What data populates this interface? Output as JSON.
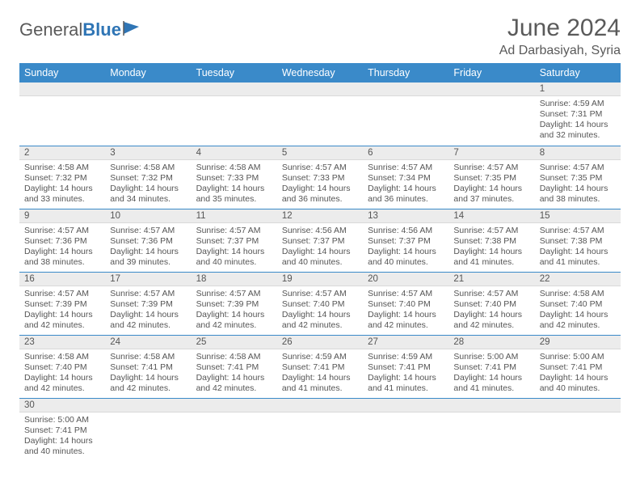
{
  "logo": {
    "text1": "General",
    "text2": "Blue"
  },
  "title": "June 2024",
  "location": "Ad Darbasiyah, Syria",
  "colors": {
    "header_bg": "#3a8ac9",
    "header_fg": "#ffffff",
    "row_border": "#3a8ac9",
    "daynum_bg": "#ececec",
    "text": "#555555"
  },
  "weekdays": [
    "Sunday",
    "Monday",
    "Tuesday",
    "Wednesday",
    "Thursday",
    "Friday",
    "Saturday"
  ],
  "weeks": [
    [
      null,
      null,
      null,
      null,
      null,
      null,
      {
        "n": "1",
        "sr": "4:59 AM",
        "ss": "7:31 PM",
        "dl": "14 hours and 32 minutes."
      }
    ],
    [
      {
        "n": "2",
        "sr": "4:58 AM",
        "ss": "7:32 PM",
        "dl": "14 hours and 33 minutes."
      },
      {
        "n": "3",
        "sr": "4:58 AM",
        "ss": "7:32 PM",
        "dl": "14 hours and 34 minutes."
      },
      {
        "n": "4",
        "sr": "4:58 AM",
        "ss": "7:33 PM",
        "dl": "14 hours and 35 minutes."
      },
      {
        "n": "5",
        "sr": "4:57 AM",
        "ss": "7:33 PM",
        "dl": "14 hours and 36 minutes."
      },
      {
        "n": "6",
        "sr": "4:57 AM",
        "ss": "7:34 PM",
        "dl": "14 hours and 36 minutes."
      },
      {
        "n": "7",
        "sr": "4:57 AM",
        "ss": "7:35 PM",
        "dl": "14 hours and 37 minutes."
      },
      {
        "n": "8",
        "sr": "4:57 AM",
        "ss": "7:35 PM",
        "dl": "14 hours and 38 minutes."
      }
    ],
    [
      {
        "n": "9",
        "sr": "4:57 AM",
        "ss": "7:36 PM",
        "dl": "14 hours and 38 minutes."
      },
      {
        "n": "10",
        "sr": "4:57 AM",
        "ss": "7:36 PM",
        "dl": "14 hours and 39 minutes."
      },
      {
        "n": "11",
        "sr": "4:57 AM",
        "ss": "7:37 PM",
        "dl": "14 hours and 40 minutes."
      },
      {
        "n": "12",
        "sr": "4:56 AM",
        "ss": "7:37 PM",
        "dl": "14 hours and 40 minutes."
      },
      {
        "n": "13",
        "sr": "4:56 AM",
        "ss": "7:37 PM",
        "dl": "14 hours and 40 minutes."
      },
      {
        "n": "14",
        "sr": "4:57 AM",
        "ss": "7:38 PM",
        "dl": "14 hours and 41 minutes."
      },
      {
        "n": "15",
        "sr": "4:57 AM",
        "ss": "7:38 PM",
        "dl": "14 hours and 41 minutes."
      }
    ],
    [
      {
        "n": "16",
        "sr": "4:57 AM",
        "ss": "7:39 PM",
        "dl": "14 hours and 42 minutes."
      },
      {
        "n": "17",
        "sr": "4:57 AM",
        "ss": "7:39 PM",
        "dl": "14 hours and 42 minutes."
      },
      {
        "n": "18",
        "sr": "4:57 AM",
        "ss": "7:39 PM",
        "dl": "14 hours and 42 minutes."
      },
      {
        "n": "19",
        "sr": "4:57 AM",
        "ss": "7:40 PM",
        "dl": "14 hours and 42 minutes."
      },
      {
        "n": "20",
        "sr": "4:57 AM",
        "ss": "7:40 PM",
        "dl": "14 hours and 42 minutes."
      },
      {
        "n": "21",
        "sr": "4:57 AM",
        "ss": "7:40 PM",
        "dl": "14 hours and 42 minutes."
      },
      {
        "n": "22",
        "sr": "4:58 AM",
        "ss": "7:40 PM",
        "dl": "14 hours and 42 minutes."
      }
    ],
    [
      {
        "n": "23",
        "sr": "4:58 AM",
        "ss": "7:40 PM",
        "dl": "14 hours and 42 minutes."
      },
      {
        "n": "24",
        "sr": "4:58 AM",
        "ss": "7:41 PM",
        "dl": "14 hours and 42 minutes."
      },
      {
        "n": "25",
        "sr": "4:58 AM",
        "ss": "7:41 PM",
        "dl": "14 hours and 42 minutes."
      },
      {
        "n": "26",
        "sr": "4:59 AM",
        "ss": "7:41 PM",
        "dl": "14 hours and 41 minutes."
      },
      {
        "n": "27",
        "sr": "4:59 AM",
        "ss": "7:41 PM",
        "dl": "14 hours and 41 minutes."
      },
      {
        "n": "28",
        "sr": "5:00 AM",
        "ss": "7:41 PM",
        "dl": "14 hours and 41 minutes."
      },
      {
        "n": "29",
        "sr": "5:00 AM",
        "ss": "7:41 PM",
        "dl": "14 hours and 40 minutes."
      }
    ],
    [
      {
        "n": "30",
        "sr": "5:00 AM",
        "ss": "7:41 PM",
        "dl": "14 hours and 40 minutes."
      },
      null,
      null,
      null,
      null,
      null,
      null
    ]
  ],
  "labels": {
    "sunrise": "Sunrise:",
    "sunset": "Sunset:",
    "daylight": "Daylight:"
  }
}
